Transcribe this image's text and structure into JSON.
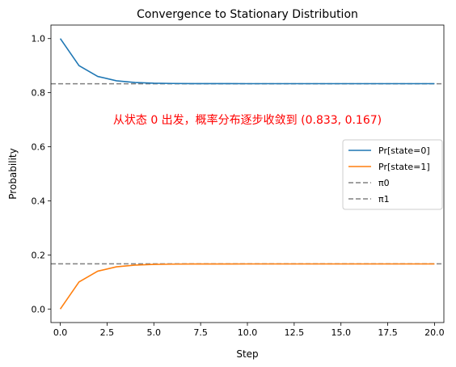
{
  "chart_data": {
    "type": "line",
    "title": "Convergence to Stationary Distribution",
    "xlabel": "Step",
    "ylabel": "Probability",
    "xlim": [
      -0.5,
      20.5
    ],
    "ylim": [
      -0.05,
      1.05
    ],
    "xticks": [
      0.0,
      2.5,
      5.0,
      7.5,
      10.0,
      12.5,
      15.0,
      17.5,
      20.0
    ],
    "xtick_labels": [
      "0.0",
      "2.5",
      "5.0",
      "7.5",
      "10.0",
      "12.5",
      "15.0",
      "17.5",
      "20.0"
    ],
    "yticks": [
      0.0,
      0.2,
      0.4,
      0.6,
      0.8,
      1.0
    ],
    "ytick_labels": [
      "0.0",
      "0.2",
      "0.4",
      "0.6",
      "0.8",
      "1.0"
    ],
    "grid": false,
    "legend_position": "center-right",
    "x": [
      0,
      1,
      2,
      3,
      4,
      5,
      6,
      7,
      8,
      9,
      10,
      11,
      12,
      13,
      14,
      15,
      16,
      17,
      18,
      19,
      20
    ],
    "series": [
      {
        "name": "Pr[state=0]",
        "color": "#1f77b4",
        "style": "solid",
        "values": [
          1.0,
          0.9,
          0.86,
          0.844,
          0.8376,
          0.835,
          0.834,
          0.8336,
          0.8335,
          0.8334,
          0.8333,
          0.8333,
          0.8333,
          0.8333,
          0.8333,
          0.8333,
          0.8333,
          0.8333,
          0.8333,
          0.8333,
          0.8333
        ]
      },
      {
        "name": "Pr[state=1]",
        "color": "#ff7f0e",
        "style": "solid",
        "values": [
          0.0,
          0.1,
          0.14,
          0.156,
          0.1624,
          0.165,
          0.166,
          0.1664,
          0.1665,
          0.1666,
          0.1667,
          0.1667,
          0.1667,
          0.1667,
          0.1667,
          0.1667,
          0.1667,
          0.1667,
          0.1667,
          0.1667,
          0.1667
        ]
      }
    ],
    "hlines": [
      {
        "name": "π0",
        "y": 0.833,
        "color": "#808080",
        "style": "dashed"
      },
      {
        "name": "π1",
        "y": 0.167,
        "color": "#808080",
        "style": "dashed"
      }
    ],
    "annotation": {
      "text": "从状态 0 出发，概率分布逐步收敛到 (0.833, 0.167)",
      "color": "#ff0000",
      "x": 10.0,
      "y": 0.7
    }
  }
}
